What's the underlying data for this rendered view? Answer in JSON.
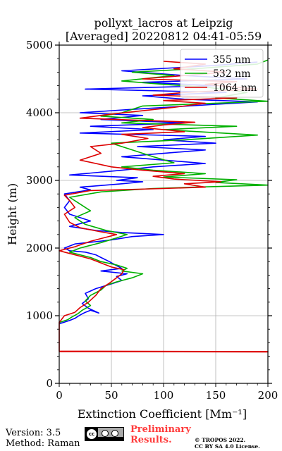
{
  "chart_data": {
    "type": "line",
    "title": "pollyxt_lacros at Leipzig",
    "subtitle": "[Averaged] 20220812 04:41-05:59",
    "xlabel": "Extinction Coefficient [Mm⁻¹]",
    "ylabel": "Height (m)",
    "xlim": [
      0,
      200
    ],
    "ylim": [
      0,
      5000
    ],
    "xticks": [
      0,
      50,
      100,
      150,
      200
    ],
    "yticks": [
      0,
      1000,
      2000,
      3000,
      4000,
      5000
    ],
    "grid": true,
    "legend_position": "top-right",
    "series": [
      {
        "name": "355 nm",
        "color": "#0000ff",
        "points": [
          [
            0,
            880
          ],
          [
            10,
            930
          ],
          [
            15,
            960
          ],
          [
            20,
            1010
          ],
          [
            25,
            1050
          ],
          [
            30,
            1080
          ],
          [
            38,
            1040
          ],
          [
            28,
            1110
          ],
          [
            22,
            1180
          ],
          [
            28,
            1250
          ],
          [
            25,
            1330
          ],
          [
            35,
            1400
          ],
          [
            48,
            1460
          ],
          [
            60,
            1520
          ],
          [
            55,
            1580
          ],
          [
            65,
            1620
          ],
          [
            40,
            1660
          ],
          [
            60,
            1700
          ],
          [
            55,
            1740
          ],
          [
            48,
            1800
          ],
          [
            40,
            1860
          ],
          [
            35,
            1900
          ],
          [
            25,
            1940
          ],
          [
            10,
            1960
          ],
          [
            5,
            2000
          ],
          [
            15,
            2060
          ],
          [
            50,
            2120
          ],
          [
            70,
            2170
          ],
          [
            100,
            2200
          ],
          [
            60,
            2230
          ],
          [
            35,
            2260
          ],
          [
            10,
            2320
          ],
          [
            30,
            2400
          ],
          [
            10,
            2500
          ],
          [
            5,
            2600
          ],
          [
            10,
            2700
          ],
          [
            5,
            2800
          ],
          [
            30,
            2860
          ],
          [
            20,
            2900
          ],
          [
            60,
            2950
          ],
          [
            80,
            2980
          ],
          [
            55,
            3000
          ],
          [
            75,
            3040
          ],
          [
            10,
            3080
          ],
          [
            60,
            3150
          ],
          [
            90,
            3200
          ],
          [
            140,
            3250
          ],
          [
            100,
            3300
          ],
          [
            60,
            3350
          ],
          [
            140,
            3450
          ],
          [
            75,
            3500
          ],
          [
            150,
            3550
          ],
          [
            100,
            3600
          ],
          [
            140,
            3650
          ],
          [
            20,
            3700
          ],
          [
            90,
            3750
          ],
          [
            30,
            3800
          ],
          [
            120,
            3850
          ],
          [
            40,
            3900
          ],
          [
            80,
            3960
          ],
          [
            20,
            4000
          ],
          [
            70,
            4050
          ],
          [
            145,
            4120
          ],
          [
            190,
            4160
          ],
          [
            120,
            4200
          ],
          [
            80,
            4250
          ],
          [
            160,
            4300
          ],
          [
            25,
            4350
          ],
          [
            150,
            4400
          ],
          [
            80,
            4450
          ],
          [
            180,
            4500
          ],
          [
            120,
            4550
          ],
          [
            60,
            4620
          ],
          [
            150,
            4700
          ],
          [
            190,
            4750
          ]
        ]
      },
      {
        "name": "532 nm",
        "color": "#00b000",
        "points": [
          [
            0,
            900
          ],
          [
            8,
            940
          ],
          [
            12,
            980
          ],
          [
            18,
            1030
          ],
          [
            22,
            1080
          ],
          [
            30,
            1150
          ],
          [
            25,
            1220
          ],
          [
            30,
            1300
          ],
          [
            40,
            1380
          ],
          [
            45,
            1450
          ],
          [
            55,
            1500
          ],
          [
            70,
            1560
          ],
          [
            80,
            1620
          ],
          [
            60,
            1660
          ],
          [
            65,
            1700
          ],
          [
            55,
            1750
          ],
          [
            40,
            1800
          ],
          [
            30,
            1860
          ],
          [
            20,
            1900
          ],
          [
            10,
            1940
          ],
          [
            20,
            2000
          ],
          [
            40,
            2080
          ],
          [
            55,
            2150
          ],
          [
            65,
            2200
          ],
          [
            45,
            2260
          ],
          [
            25,
            2350
          ],
          [
            15,
            2450
          ],
          [
            30,
            2550
          ],
          [
            20,
            2650
          ],
          [
            10,
            2750
          ],
          [
            40,
            2830
          ],
          [
            90,
            2880
          ],
          [
            130,
            2900
          ],
          [
            200,
            2930
          ],
          [
            150,
            2970
          ],
          [
            170,
            3010
          ],
          [
            100,
            3050
          ],
          [
            140,
            3100
          ],
          [
            90,
            3150
          ],
          [
            60,
            3200
          ],
          [
            110,
            3260
          ],
          [
            90,
            3350
          ],
          [
            70,
            3450
          ],
          [
            50,
            3550
          ],
          [
            120,
            3600
          ],
          [
            190,
            3670
          ],
          [
            100,
            3750
          ],
          [
            170,
            3800
          ],
          [
            60,
            3850
          ],
          [
            90,
            3900
          ],
          [
            40,
            3950
          ],
          [
            60,
            4000
          ],
          [
            80,
            4100
          ],
          [
            200,
            4170
          ],
          [
            150,
            4220
          ],
          [
            180,
            4300
          ],
          [
            140,
            4380
          ],
          [
            100,
            4420
          ],
          [
            60,
            4470
          ],
          [
            110,
            4550
          ],
          [
            70,
            4600
          ],
          [
            130,
            4650
          ],
          [
            190,
            4720
          ],
          [
            200,
            4780
          ]
        ]
      },
      {
        "name": "1064 nm",
        "color": "#dd0000",
        "points": [
          [
            0,
            470
          ],
          [
            200,
            465
          ],
          [
            200,
            470
          ],
          [
            0,
            475
          ],
          [
            0,
            900
          ],
          [
            5,
            1000
          ],
          [
            15,
            1050
          ],
          [
            20,
            1120
          ],
          [
            28,
            1200
          ],
          [
            35,
            1300
          ],
          [
            40,
            1400
          ],
          [
            48,
            1480
          ],
          [
            55,
            1560
          ],
          [
            60,
            1620
          ],
          [
            62,
            1680
          ],
          [
            50,
            1720
          ],
          [
            40,
            1780
          ],
          [
            30,
            1840
          ],
          [
            20,
            1880
          ],
          [
            10,
            1920
          ],
          [
            0,
            1960
          ],
          [
            15,
            2020
          ],
          [
            30,
            2100
          ],
          [
            45,
            2160
          ],
          [
            55,
            2200
          ],
          [
            40,
            2240
          ],
          [
            20,
            2300
          ],
          [
            10,
            2380
          ],
          [
            5,
            2500
          ],
          [
            15,
            2600
          ],
          [
            10,
            2700
          ],
          [
            5,
            2780
          ],
          [
            30,
            2850
          ],
          [
            100,
            2880
          ],
          [
            140,
            2900
          ],
          [
            120,
            2950
          ],
          [
            155,
            2980
          ],
          [
            110,
            3020
          ],
          [
            90,
            3060
          ],
          [
            120,
            3100
          ],
          [
            80,
            3150
          ],
          [
            50,
            3200
          ],
          [
            20,
            3300
          ],
          [
            40,
            3400
          ],
          [
            30,
            3500
          ],
          [
            60,
            3550
          ],
          [
            85,
            3620
          ],
          [
            60,
            3680
          ],
          [
            120,
            3720
          ],
          [
            80,
            3780
          ],
          [
            100,
            3820
          ],
          [
            130,
            3860
          ],
          [
            20,
            3920
          ],
          [
            50,
            3980
          ],
          [
            110,
            4080
          ],
          [
            140,
            4140
          ],
          [
            100,
            4180
          ],
          [
            170,
            4220
          ],
          [
            90,
            4260
          ],
          [
            120,
            4300
          ],
          [
            190,
            4350
          ],
          [
            140,
            4420
          ],
          [
            170,
            4460
          ],
          [
            80,
            4500
          ],
          [
            120,
            4550
          ],
          [
            160,
            4600
          ],
          [
            110,
            4650
          ],
          [
            140,
            4720
          ],
          [
            100,
            4760
          ]
        ]
      }
    ]
  },
  "footer": {
    "version": "Version: 3.5",
    "method": "Method: Raman",
    "prelim_line1": "Preliminary",
    "prelim_line2": "Results.",
    "license_line1": "© TROPOS 2022.",
    "license_line2": "CC BY SA 4.0 License."
  }
}
